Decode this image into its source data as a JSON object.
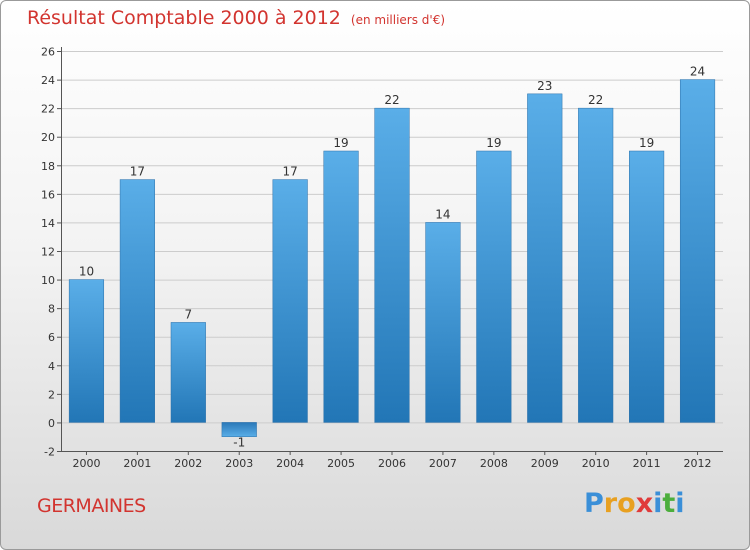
{
  "header": {
    "title": "Résultat Comptable 2000 à 2012",
    "unit": "(en milliers d'€)"
  },
  "footer": {
    "commune": "GERMAINES",
    "logo": {
      "letters": [
        "P",
        "r",
        "o",
        "x",
        "i",
        "t",
        "i"
      ],
      "colors": [
        "#3a8fd8",
        "#e8a020",
        "#e8a020",
        "#e03a3a",
        "#3a8fd8",
        "#4cae3c",
        "#3a8fd8"
      ]
    }
  },
  "chart_data": {
    "type": "bar",
    "title": "Résultat Comptable 2000 à 2012",
    "subtitle": "(en milliers d'€)",
    "xlabel": "",
    "ylabel": "",
    "categories": [
      "2000",
      "2001",
      "2002",
      "2003",
      "2004",
      "2005",
      "2006",
      "2007",
      "2008",
      "2009",
      "2010",
      "2011",
      "2012"
    ],
    "values": [
      10,
      17,
      7,
      -1,
      17,
      19,
      22,
      14,
      19,
      23,
      22,
      19,
      24
    ],
    "data_labels": [
      "10",
      "17",
      "7",
      "-1",
      "17",
      "19",
      "22",
      "14",
      "19",
      "23",
      "22",
      "19",
      "24"
    ],
    "ylim": [
      -2,
      26
    ],
    "yticks": [
      "-2",
      "0",
      "2",
      "4",
      "6",
      "8",
      "10",
      "12",
      "14",
      "16",
      "18",
      "20",
      "22",
      "24",
      "26"
    ],
    "grid": true,
    "colors": {
      "bar": "#4a9fdf",
      "bar_dark": "#2a78b8",
      "grid": "#cccccc",
      "axis": "#555555"
    }
  }
}
